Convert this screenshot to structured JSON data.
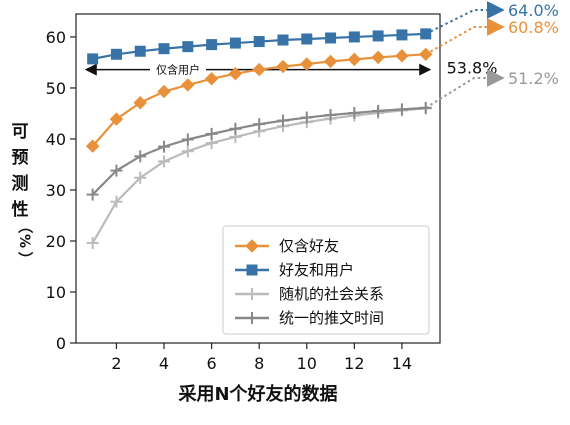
{
  "chart_data": {
    "type": "line",
    "xlabel": "采用N个好友的数据",
    "ylabel_chars": [
      "可",
      "预",
      "测",
      "性",
      "（",
      "%",
      "）"
    ],
    "xlim": [
      0.3,
      15.6
    ],
    "ylim": [
      0,
      64.5
    ],
    "xticks": [
      2,
      4,
      6,
      8,
      10,
      12,
      14
    ],
    "yticks": [
      0,
      10,
      20,
      30,
      40,
      50,
      60
    ],
    "grid": false,
    "legend_position": "lower-right",
    "x": [
      1,
      2,
      3,
      4,
      5,
      6,
      7,
      8,
      9,
      10,
      11,
      12,
      13,
      14,
      15
    ],
    "series": [
      {
        "name": "仅含好友",
        "color": "#E8913A",
        "marker": "diamond",
        "values": [
          38.6,
          43.9,
          47.1,
          49.3,
          50.6,
          51.8,
          52.8,
          53.6,
          54.2,
          54.7,
          55.2,
          55.6,
          56.0,
          56.3,
          56.6
        ],
        "extrapolated_label": "60.8%"
      },
      {
        "name": "好友和用户",
        "color": "#3873A8",
        "marker": "square",
        "values": [
          55.7,
          56.6,
          57.2,
          57.7,
          58.1,
          58.5,
          58.8,
          59.1,
          59.4,
          59.6,
          59.8,
          60.0,
          60.2,
          60.4,
          60.6
        ],
        "extrapolated_label": "64.0%"
      },
      {
        "name": "随机的社会关系",
        "color": "#BBBBBB",
        "marker": "plus",
        "values": [
          19.6,
          27.7,
          32.4,
          35.6,
          37.6,
          39.2,
          40.4,
          41.5,
          42.5,
          43.3,
          44.0,
          44.6,
          45.1,
          45.6,
          46.0
        ]
      },
      {
        "name": "统一的推文时间",
        "color": "#888888",
        "marker": "plus",
        "values": [
          29.1,
          33.8,
          36.6,
          38.5,
          39.9,
          41.0,
          42.0,
          42.9,
          43.6,
          44.2,
          44.7,
          45.1,
          45.5,
          45.8,
          46.1
        ],
        "extrapolated_label": "51.2%"
      }
    ],
    "annotations": {
      "friends_only_span_label": "仅含用户",
      "friends_only_span_y": 53.6,
      "friends_only_span_value": "53.8%"
    }
  }
}
